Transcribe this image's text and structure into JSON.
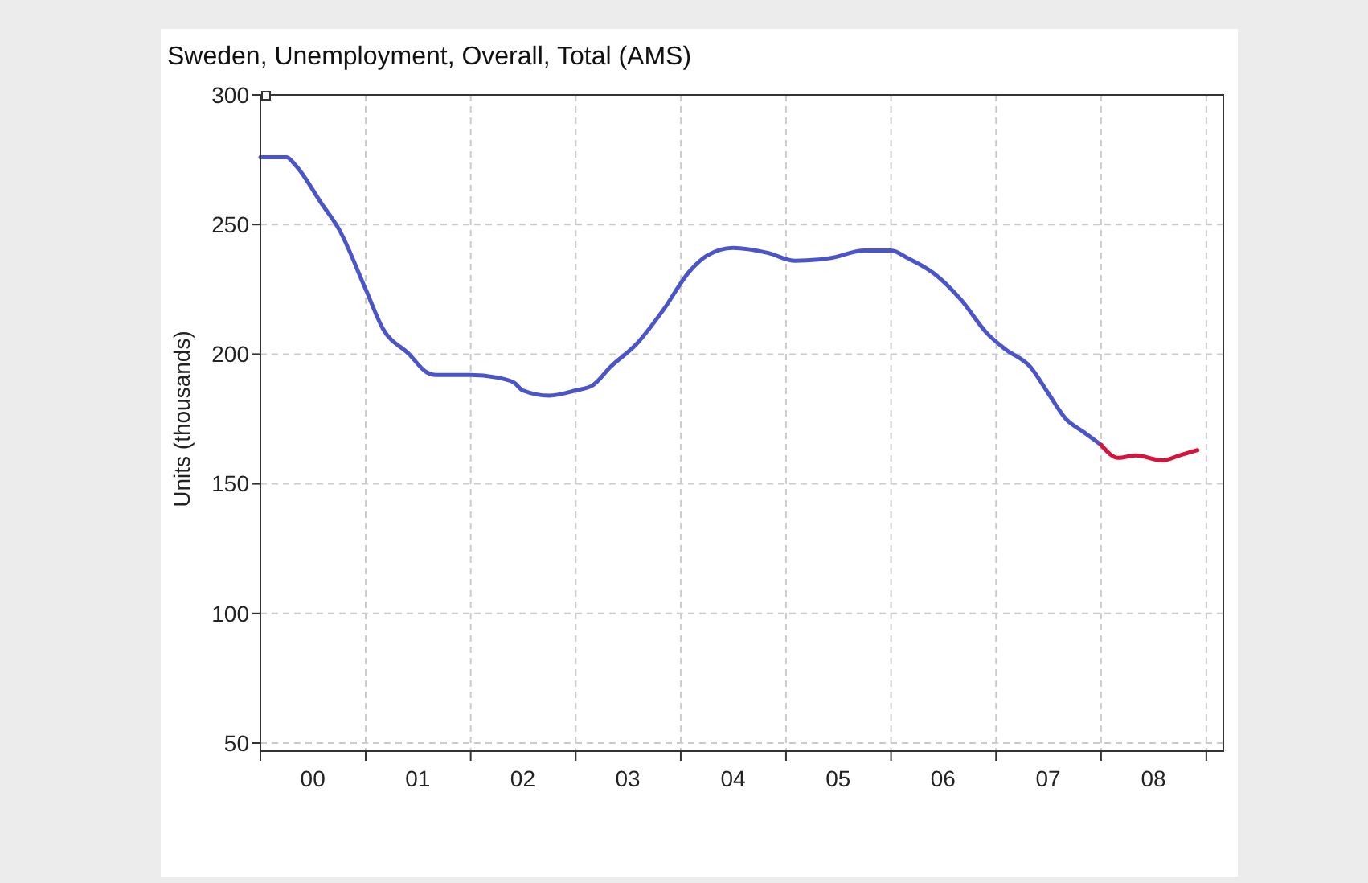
{
  "chart_data": {
    "type": "line",
    "title": "Sweden, Unemployment, Overall, Total (AMS)",
    "ylabel": "Units (thousands)",
    "series": [
      {
        "color": "#4b55c8",
        "x": [
          "2000-01",
          "2000-04",
          "2000-05",
          "2000-08",
          "2000-10",
          "2001-01",
          "2001-03",
          "2001-06",
          "2001-08",
          "2001-09",
          "2002-01",
          "2002-04",
          "2002-06",
          "2002-07",
          "2002-10",
          "2003-01",
          "2003-03",
          "2003-05",
          "2003-08",
          "2003-11",
          "2004-02",
          "2004-04",
          "2004-07",
          "2004-11",
          "2005-02",
          "2005-06",
          "2005-10",
          "2006-01",
          "2006-03",
          "2006-06",
          "2006-09",
          "2006-12",
          "2007-02",
          "2007-05",
          "2007-07",
          "2007-09",
          "2007-11",
          "2008-01"
        ],
        "values": [
          276,
          276,
          273,
          258,
          248,
          225,
          210,
          200,
          193,
          192,
          192,
          191,
          189,
          186,
          184,
          186,
          188,
          195,
          204,
          217,
          232,
          238,
          241,
          239,
          236,
          237,
          240,
          240,
          237,
          231,
          221,
          208,
          202,
          195,
          185,
          175,
          170,
          165
        ]
      },
      {
        "color": "#d4143c",
        "x": [
          "2008-01",
          "2008-03",
          "2008-05",
          "2008-08",
          "2008-10",
          "2008-12"
        ],
        "values": [
          165,
          160,
          161,
          159,
          161,
          163
        ]
      }
    ],
    "xlim": [
      "2000-01",
      "2009-03"
    ],
    "xticks": [
      {
        "value": "2000-01",
        "label": null
      },
      {
        "value": "2000-07",
        "label": "00"
      },
      {
        "value": "2001-01",
        "label": null
      },
      {
        "value": "2001-07",
        "label": "01"
      },
      {
        "value": "2002-01",
        "label": null
      },
      {
        "value": "2002-07",
        "label": "02"
      },
      {
        "value": "2003-01",
        "label": null
      },
      {
        "value": "2003-07",
        "label": "03"
      },
      {
        "value": "2004-01",
        "label": null
      },
      {
        "value": "2004-07",
        "label": "04"
      },
      {
        "value": "2005-01",
        "label": null
      },
      {
        "value": "2005-07",
        "label": "05"
      },
      {
        "value": "2006-01",
        "label": null
      },
      {
        "value": "2006-07",
        "label": "06"
      },
      {
        "value": "2007-01",
        "label": null
      },
      {
        "value": "2007-07",
        "label": "07"
      },
      {
        "value": "2008-01",
        "label": null
      },
      {
        "value": "2008-07",
        "label": "08"
      },
      {
        "value": "2009-01",
        "label": null
      }
    ],
    "ylim": [
      50,
      300
    ],
    "yticks": [
      50,
      100,
      150,
      200,
      250,
      300
    ],
    "grid": true
  }
}
